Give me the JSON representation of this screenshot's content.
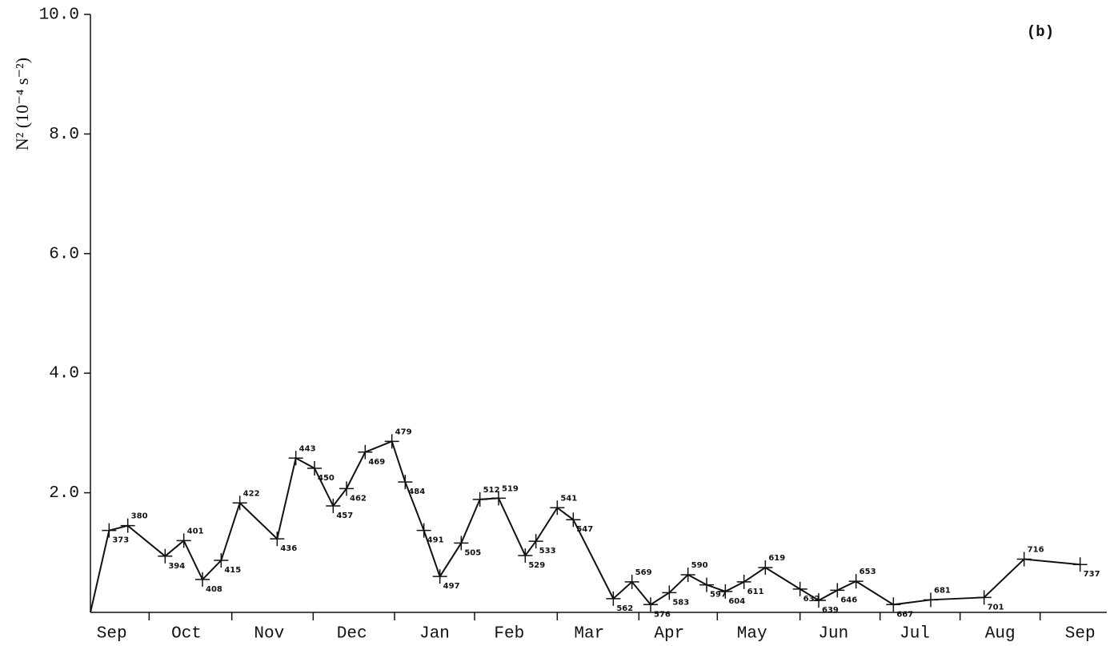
{
  "chart_data": {
    "type": "line",
    "y_label": "N² (10⁻⁴ s⁻²)",
    "annotation": "(b)",
    "x": [
      366,
      373,
      380,
      394,
      401,
      408,
      415,
      422,
      436,
      443,
      450,
      457,
      462,
      469,
      479,
      484,
      491,
      497,
      505,
      512,
      519,
      529,
      533,
      541,
      547,
      562,
      569,
      576,
      583,
      590,
      597,
      604,
      611,
      619,
      632,
      639,
      646,
      653,
      667,
      681,
      701,
      716,
      737
    ],
    "series": [
      {
        "color": "#111111",
        "values": [
          0,
          1.37,
          1.45,
          0.94,
          1.2,
          0.55,
          0.87,
          1.83,
          1.23,
          2.58,
          2.41,
          1.78,
          2.07,
          2.68,
          2.86,
          2.18,
          1.37,
          0.6,
          1.16,
          1.89,
          1.91,
          0.95,
          1.19,
          1.75,
          1.55,
          0.23,
          0.51,
          0.13,
          0.33,
          0.63,
          0.46,
          0.35,
          0.51,
          0.75,
          0.39,
          0.2,
          0.37,
          0.52,
          0.13,
          0.21,
          0.25,
          0.89,
          0.8
        ]
      }
    ],
    "xlim": [
      366,
      747
    ],
    "ylim": [
      0,
      10
    ],
    "yticks": [
      {
        "value": 2,
        "label": "2.0"
      },
      {
        "value": 4,
        "label": "4.0"
      },
      {
        "value": 6,
        "label": "6.0"
      },
      {
        "value": 8,
        "label": "8.0"
      },
      {
        "value": 10,
        "label": "10.0"
      }
    ],
    "xticks": [
      {
        "value": 374,
        "label": "Sep"
      },
      {
        "value": 402,
        "label": "Oct"
      },
      {
        "value": 433,
        "label": "Nov"
      },
      {
        "value": 464,
        "label": "Dec"
      },
      {
        "value": 495,
        "label": "Jan"
      },
      {
        "value": 523,
        "label": "Feb"
      },
      {
        "value": 553,
        "label": "Mar"
      },
      {
        "value": 583,
        "label": "Apr"
      },
      {
        "value": 614,
        "label": "May"
      },
      {
        "value": 644.5,
        "label": "Jun"
      },
      {
        "value": 675,
        "label": "Jul"
      },
      {
        "value": 707,
        "label": "Aug"
      },
      {
        "value": 737,
        "label": "Sep"
      }
    ],
    "xtick_marks": [
      388,
      419,
      449.5,
      480,
      510,
      541,
      571.6,
      601,
      632,
      662,
      692,
      722
    ]
  }
}
